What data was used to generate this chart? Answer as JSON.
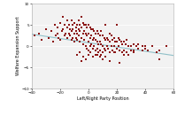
{
  "title": "",
  "xlabel": "Left/Right Party Position",
  "ylabel": "Welfare Expansion Support",
  "xlim": [
    -40,
    60
  ],
  "ylim": [
    -10,
    10
  ],
  "xticks": [
    -40,
    -20,
    0,
    20,
    40,
    60
  ],
  "yticks": [
    -10,
    -5,
    0,
    5,
    10
  ],
  "scatter_color": "#8B1515",
  "line_color": "#90C0C8",
  "bg_color": "#f2f2f2",
  "scatter_size": 3,
  "scatter_marker": "s",
  "fit_x": [
    -40,
    60
  ],
  "fit_y": [
    2.8,
    -2.2
  ],
  "points": [
    [
      -38,
      2.5
    ],
    [
      -35,
      3.0
    ],
    [
      -33,
      1.5
    ],
    [
      -30,
      4.0
    ],
    [
      -28,
      2.0
    ],
    [
      -26,
      3.5
    ],
    [
      -25,
      1.0
    ],
    [
      -24,
      5.0
    ],
    [
      -23,
      2.5
    ],
    [
      -22,
      4.5
    ],
    [
      -22,
      3.0
    ],
    [
      -21,
      2.0
    ],
    [
      -20,
      5.5
    ],
    [
      -20,
      1.5
    ],
    [
      -19,
      3.5
    ],
    [
      -18,
      7.0
    ],
    [
      -18,
      4.0
    ],
    [
      -17,
      5.0
    ],
    [
      -17,
      2.5
    ],
    [
      -16,
      3.0
    ],
    [
      -15,
      6.0
    ],
    [
      -15,
      4.5
    ],
    [
      -15,
      2.0
    ],
    [
      -14,
      5.0
    ],
    [
      -14,
      3.0
    ],
    [
      -13,
      4.0
    ],
    [
      -13,
      2.5
    ],
    [
      -12,
      6.0
    ],
    [
      -12,
      3.5
    ],
    [
      -12,
      1.5
    ],
    [
      -11,
      5.0
    ],
    [
      -11,
      4.0
    ],
    [
      -11,
      2.0
    ],
    [
      -10,
      5.5
    ],
    [
      -10,
      3.0
    ],
    [
      -10,
      1.0
    ],
    [
      -9,
      4.5
    ],
    [
      -9,
      3.5
    ],
    [
      -9,
      2.0
    ],
    [
      -8,
      5.0
    ],
    [
      -8,
      3.0
    ],
    [
      -8,
      1.5
    ],
    [
      -7,
      6.0
    ],
    [
      -7,
      4.0
    ],
    [
      -7,
      2.5
    ],
    [
      -6,
      5.0
    ],
    [
      -6,
      3.5
    ],
    [
      -6,
      1.0
    ],
    [
      -5,
      7.0
    ],
    [
      -5,
      4.5
    ],
    [
      -5,
      2.0
    ],
    [
      -4,
      5.5
    ],
    [
      -4,
      3.0
    ],
    [
      -4,
      0.5
    ],
    [
      -3,
      5.0
    ],
    [
      -3,
      3.5
    ],
    [
      -3,
      1.5
    ],
    [
      -2,
      5.0
    ],
    [
      -2,
      3.0
    ],
    [
      -2,
      0.0
    ],
    [
      -1,
      4.5
    ],
    [
      -1,
      2.5
    ],
    [
      -1,
      -0.5
    ],
    [
      0,
      5.0
    ],
    [
      0,
      3.0
    ],
    [
      0,
      1.0
    ],
    [
      0,
      -1.0
    ],
    [
      1,
      4.5
    ],
    [
      1,
      2.0
    ],
    [
      1,
      0.0
    ],
    [
      2,
      4.0
    ],
    [
      2,
      2.5
    ],
    [
      2,
      0.5
    ],
    [
      3,
      4.0
    ],
    [
      3,
      1.5
    ],
    [
      3,
      -0.5
    ],
    [
      4,
      3.5
    ],
    [
      4,
      2.0
    ],
    [
      4,
      0.0
    ],
    [
      5,
      3.0
    ],
    [
      5,
      1.5
    ],
    [
      5,
      -1.0
    ],
    [
      6,
      3.5
    ],
    [
      6,
      1.0
    ],
    [
      6,
      -0.5
    ],
    [
      7,
      3.0
    ],
    [
      7,
      0.5
    ],
    [
      7,
      -1.5
    ],
    [
      8,
      2.5
    ],
    [
      8,
      1.0
    ],
    [
      8,
      -1.0
    ],
    [
      9,
      3.5
    ],
    [
      9,
      0.5
    ],
    [
      9,
      -2.0
    ],
    [
      10,
      2.5
    ],
    [
      10,
      0.0
    ],
    [
      10,
      -1.5
    ],
    [
      11,
      2.0
    ],
    [
      11,
      -0.5
    ],
    [
      12,
      5.0
    ],
    [
      12,
      1.5
    ],
    [
      12,
      -1.0
    ],
    [
      13,
      2.0
    ],
    [
      13,
      0.0
    ],
    [
      14,
      1.5
    ],
    [
      14,
      -0.5
    ],
    [
      15,
      3.0
    ],
    [
      15,
      1.0
    ],
    [
      15,
      -1.5
    ],
    [
      16,
      2.5
    ],
    [
      16,
      0.0
    ],
    [
      17,
      1.5
    ],
    [
      17,
      -1.0
    ],
    [
      18,
      2.0
    ],
    [
      18,
      0.0
    ],
    [
      19,
      1.0
    ],
    [
      19,
      -1.5
    ],
    [
      20,
      5.0
    ],
    [
      20,
      1.0
    ],
    [
      20,
      -0.5
    ],
    [
      21,
      2.0
    ],
    [
      21,
      0.0
    ],
    [
      22,
      1.5
    ],
    [
      22,
      -1.0
    ],
    [
      23,
      1.0
    ],
    [
      24,
      0.5
    ],
    [
      24,
      -1.5
    ],
    [
      25,
      1.0
    ],
    [
      25,
      -1.0
    ],
    [
      26,
      0.5
    ],
    [
      27,
      1.5
    ],
    [
      27,
      -1.5
    ],
    [
      28,
      0.0
    ],
    [
      28,
      -2.0
    ],
    [
      30,
      0.0
    ],
    [
      30,
      -1.0
    ],
    [
      32,
      0.5
    ],
    [
      32,
      -1.5
    ],
    [
      34,
      0.0
    ],
    [
      35,
      -0.5
    ],
    [
      35,
      0.5
    ],
    [
      38,
      -1.0
    ],
    [
      38,
      0.0
    ],
    [
      40,
      0.0
    ],
    [
      42,
      -1.0
    ],
    [
      45,
      0.0
    ],
    [
      48,
      -1.5
    ],
    [
      50,
      -3.0
    ],
    [
      55,
      0.0
    ],
    [
      -5,
      -3.5
    ],
    [
      -2,
      -3.0
    ],
    [
      3,
      -2.5
    ],
    [
      8,
      -2.5
    ],
    [
      15,
      -3.5
    ],
    [
      22,
      -4.0
    ],
    [
      0,
      -2.0
    ],
    [
      5,
      -2.0
    ],
    [
      10,
      -3.0
    ],
    [
      -8,
      -2.0
    ],
    [
      -6,
      -1.5
    ],
    [
      -4,
      -2.5
    ],
    [
      1,
      -1.5
    ],
    [
      6,
      -2.0
    ],
    [
      12,
      -2.5
    ],
    [
      18,
      -1.5
    ],
    [
      25,
      -2.0
    ],
    [
      32,
      -1.0
    ],
    [
      40,
      -0.5
    ],
    [
      50,
      -1.0
    ]
  ]
}
